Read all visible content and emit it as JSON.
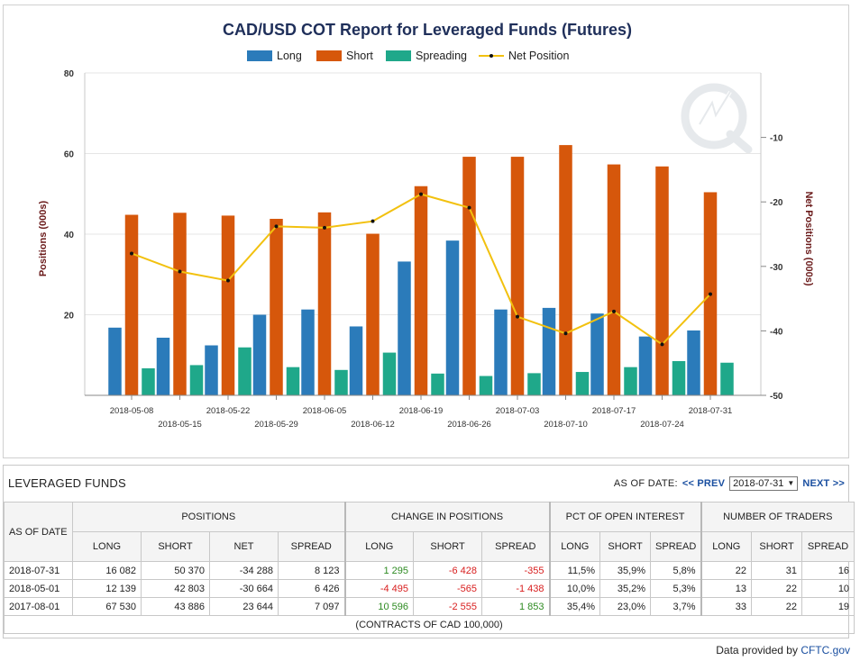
{
  "chart_data": {
    "type": "bar",
    "title": "CAD/USD COT Report for Leveraged Funds (Futures)",
    "ylabel": "Positions (000s)",
    "y2label": "Net Positions (000s)",
    "ylim": [
      0,
      80
    ],
    "y2lim": [
      -50,
      0
    ],
    "yticks": [
      20,
      40,
      60,
      80
    ],
    "y2ticks": [
      -10,
      -20,
      -30,
      -40,
      -50
    ],
    "legend_position": "top-center",
    "grid": true,
    "categories": [
      "2018-05-08",
      "2018-05-15",
      "2018-05-22",
      "2018-05-29",
      "2018-06-05",
      "2018-06-12",
      "2018-06-19",
      "2018-06-26",
      "2018-07-03",
      "2018-07-10",
      "2018-07-17",
      "2018-07-24",
      "2018-07-31"
    ],
    "series": [
      {
        "name": "Long",
        "type": "bar",
        "color": "#2b7bba",
        "values": [
          16.8,
          14.3,
          12.4,
          20.0,
          21.3,
          17.1,
          33.2,
          38.4,
          21.3,
          21.7,
          20.3,
          14.6,
          16.1
        ]
      },
      {
        "name": "Short",
        "type": "bar",
        "color": "#d6570b",
        "values": [
          44.8,
          45.3,
          44.6,
          43.8,
          45.4,
          40.1,
          51.9,
          59.2,
          59.2,
          62.1,
          57.3,
          56.8,
          50.4
        ]
      },
      {
        "name": "Spreading",
        "type": "bar",
        "color": "#1fa88a",
        "values": [
          6.7,
          7.5,
          11.9,
          7.0,
          6.3,
          10.6,
          5.4,
          4.8,
          5.5,
          5.8,
          7.0,
          8.5,
          8.1
        ]
      },
      {
        "name": "Net Position",
        "type": "line",
        "axis": "right",
        "color": "#f2c10f",
        "values": [
          -28.0,
          -30.8,
          -32.2,
          -23.8,
          -24.0,
          -23.0,
          -18.8,
          -20.9,
          -37.8,
          -40.4,
          -37.0,
          -42.1,
          -34.3
        ]
      }
    ]
  },
  "table": {
    "title": "LEVERAGED FUNDS",
    "as_of_label": "AS OF DATE:",
    "prev_label": "<< PREV",
    "next_label": "NEXT >>",
    "selected_date": "2018-07-31",
    "col_as_of": "AS OF DATE",
    "grp_positions": "POSITIONS",
    "grp_change": "CHANGE IN POSITIONS",
    "grp_pct": "PCT OF OPEN INTEREST",
    "grp_traders": "NUMBER OF TRADERS",
    "sub": {
      "long": "LONG",
      "short": "SHORT",
      "net": "NET",
      "spread": "SPREAD"
    },
    "rows": [
      {
        "date": "2018-07-31",
        "long": "16 082",
        "short": "50 370",
        "net": "-34 288",
        "spread": "8 123",
        "c_long": "1 295",
        "c_short": "-6 428",
        "c_spread": "-355",
        "p_long": "11,5%",
        "p_short": "35,9%",
        "p_spread": "5,8%",
        "t_long": "22",
        "t_short": "31",
        "t_spread": "16"
      },
      {
        "date": "2018-05-01",
        "long": "12 139",
        "short": "42 803",
        "net": "-30 664",
        "spread": "6 426",
        "c_long": "-4 495",
        "c_short": "-565",
        "c_spread": "-1 438",
        "p_long": "10,0%",
        "p_short": "35,2%",
        "p_spread": "5,3%",
        "t_long": "13",
        "t_short": "22",
        "t_spread": "10"
      },
      {
        "date": "2017-08-01",
        "long": "67 530",
        "short": "43 886",
        "net": "23 644",
        "spread": "7 097",
        "c_long": "10 596",
        "c_short": "-2 555",
        "c_spread": "1 853",
        "p_long": "35,4%",
        "p_short": "23,0%",
        "p_spread": "3,7%",
        "t_long": "33",
        "t_short": "22",
        "t_spread": "19"
      }
    ],
    "footnote": "(CONTRACTS OF CAD 100,000)"
  },
  "credit": {
    "prefix": "Data provided by",
    "source": "CFTC.gov"
  }
}
